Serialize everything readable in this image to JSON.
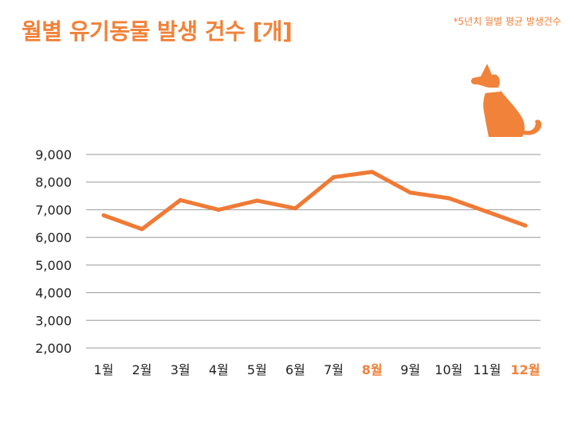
{
  "title": "월별 유기동물 발생 건수 [개]",
  "note": "*5년치 월별 평균 발생건수",
  "icon": "dog-icon",
  "colors": {
    "accent": "#f0823a",
    "line": "#f07a35",
    "grid": "#999999",
    "text": "#222222"
  },
  "chart_data": {
    "type": "line",
    "title": "월별 유기동물 발생 건수 [개]",
    "xlabel": "",
    "ylabel": "",
    "categories": [
      "1월",
      "2월",
      "3월",
      "4월",
      "5월",
      "6월",
      "7월",
      "8월",
      "9월",
      "10월",
      "11월",
      "12월"
    ],
    "highlighted": [
      "8월",
      "12월"
    ],
    "values": [
      6800,
      6300,
      7350,
      7000,
      7330,
      7050,
      8180,
      8370,
      7620,
      7420,
      6930,
      6430
    ],
    "yticks": [
      "2,000",
      "3,000",
      "4,000",
      "5,000",
      "6,000",
      "7,000",
      "8,000",
      "9,000"
    ],
    "ytick_values": [
      2000,
      3000,
      4000,
      5000,
      6000,
      7000,
      8000,
      9000
    ],
    "ylim": [
      2000,
      9000
    ],
    "grid": true,
    "legend": "none"
  }
}
